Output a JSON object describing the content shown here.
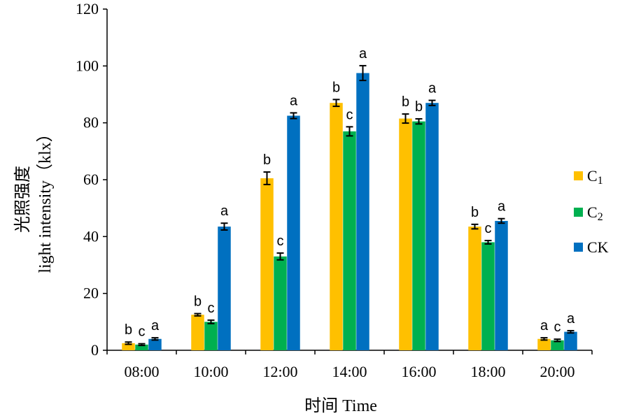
{
  "chart_data": {
    "type": "bar",
    "title": "",
    "xlabel": "时间 Time",
    "ylabel_line1": "光照强度",
    "ylabel_line2": "light intensity（klx）",
    "ylim": [
      0,
      120
    ],
    "yticks": [
      "0",
      "20",
      "40",
      "60",
      "80",
      "100",
      "120"
    ],
    "categories": [
      "08:00",
      "10:00",
      "12:00",
      "14:00",
      "16:00",
      "18:00",
      "20:00"
    ],
    "series": [
      {
        "name": "C1",
        "name_main": "C",
        "name_sub": "1",
        "color": "#FFC000",
        "values": [
          2.5,
          12.5,
          60.5,
          87,
          81.5,
          43.5,
          4
        ],
        "errors": [
          0.4,
          0.4,
          2.2,
          1.2,
          1.6,
          0.8,
          0.4
        ],
        "labels": [
          "b",
          "b",
          "b",
          "b",
          "b",
          "b",
          "a"
        ]
      },
      {
        "name": "C2",
        "name_main": "C",
        "name_sub": "2",
        "color": "#00B050",
        "values": [
          2,
          10,
          33,
          77,
          80.5,
          38,
          3.5
        ],
        "errors": [
          0.3,
          0.6,
          1.2,
          1.6,
          0.9,
          0.6,
          0.4
        ],
        "labels": [
          "c",
          "c",
          "c",
          "c",
          "b",
          "c",
          "c"
        ]
      },
      {
        "name": "CK",
        "name_main": "CK",
        "name_sub": "",
        "color": "#0070C0",
        "values": [
          4,
          43.5,
          82.5,
          97.5,
          87,
          45.5,
          6.5
        ],
        "errors": [
          0.4,
          1.2,
          1.0,
          2.6,
          0.9,
          0.8,
          0.4
        ],
        "labels": [
          "a",
          "a",
          "a",
          "a",
          "a",
          "a",
          "a"
        ]
      }
    ],
    "legend": "right",
    "grid": false
  }
}
